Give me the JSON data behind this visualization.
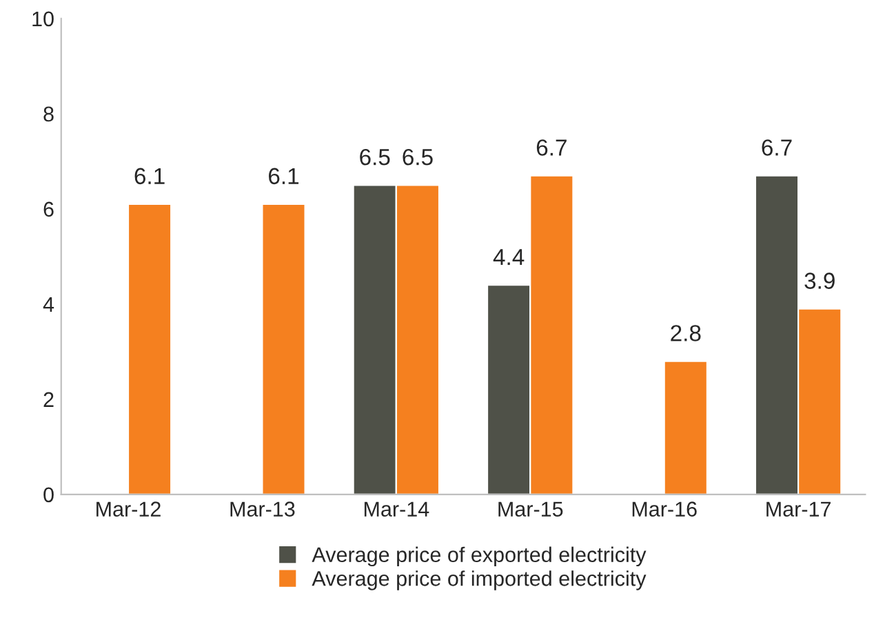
{
  "chart_data": {
    "type": "bar",
    "categories": [
      "Mar-12",
      "Mar-13",
      "Mar-14",
      "Mar-15",
      "Mar-16",
      "Mar-17"
    ],
    "series": [
      {
        "name": "Average price of exported electricity",
        "color": "#4f5148",
        "values": [
          null,
          null,
          6.5,
          4.4,
          null,
          6.7
        ]
      },
      {
        "name": "Average price of imported electricity",
        "color": "#f5801f",
        "values": [
          6.1,
          6.1,
          6.5,
          6.7,
          2.8,
          3.9
        ]
      }
    ],
    "ylim": [
      0,
      10
    ],
    "yticks": [
      0,
      2,
      4,
      6,
      8,
      10
    ],
    "grid": false,
    "legend": "bottom",
    "data_labels": true
  }
}
